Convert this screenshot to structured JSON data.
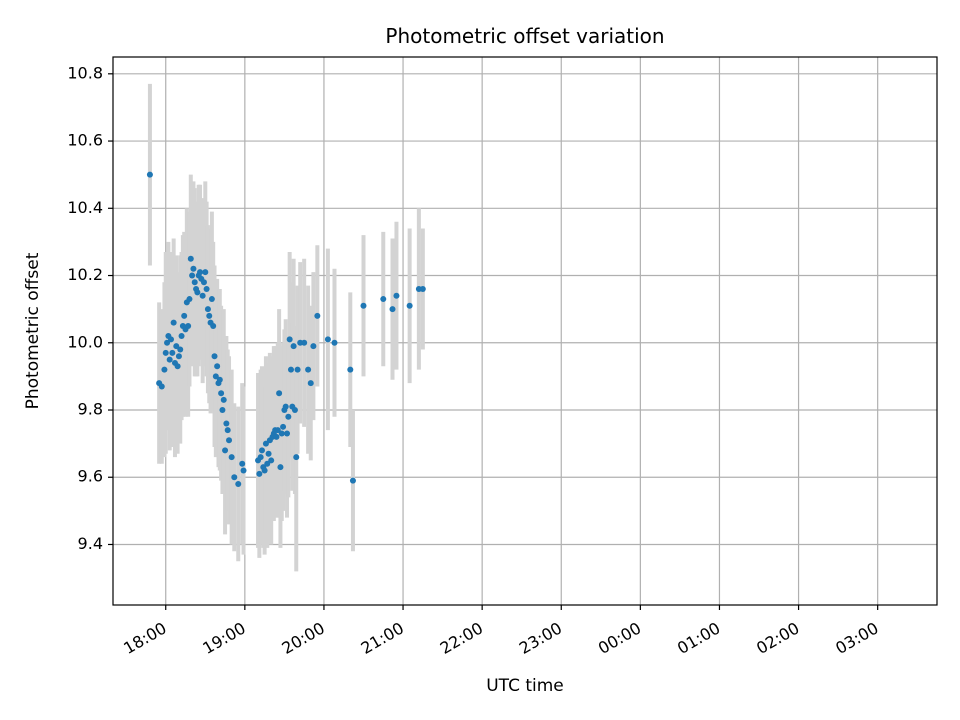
{
  "chart_data": {
    "type": "scatter",
    "title": "Photometric offset variation",
    "xlabel": "UTC time",
    "ylabel": "Photometric offset",
    "x_ticks": [
      "18:00",
      "19:00",
      "20:00",
      "21:00",
      "22:00",
      "23:00",
      "00:00",
      "01:00",
      "02:00",
      "03:00"
    ],
    "x_range": [
      "17:20",
      "03:45"
    ],
    "y_ticks": [
      "9.4",
      "9.6",
      "9.8",
      "10.0",
      "10.2",
      "10.4",
      "10.6",
      "10.8"
    ],
    "ylim": [
      9.22,
      10.85
    ],
    "grid": true,
    "colors": {
      "points": "#1f77b4",
      "error_bars": "#d3d3d3",
      "grid": "#b0b0b0"
    },
    "series": [
      {
        "x_time": [
          "17:48",
          "17:55",
          "17:57",
          "17:59",
          "18:00",
          "18:01",
          "18:02",
          "18:03",
          "18:04",
          "18:05",
          "18:06",
          "18:07",
          "18:08",
          "18:09",
          "18:10",
          "18:11",
          "18:12",
          "18:13",
          "18:14",
          "18:15",
          "18:16",
          "18:17",
          "18:18",
          "18:19",
          "18:20",
          "18:21",
          "18:22",
          "18:23",
          "18:24",
          "18:25",
          "18:26",
          "18:27",
          "18:28",
          "18:29",
          "18:30",
          "18:31",
          "18:32",
          "18:33",
          "18:34",
          "18:35",
          "18:36",
          "18:37",
          "18:38",
          "18:39",
          "18:40",
          "18:41",
          "18:42",
          "18:43",
          "18:44",
          "18:45",
          "18:46",
          "18:47",
          "18:48",
          "18:50",
          "18:52",
          "18:55",
          "18:58",
          "18:59",
          "19:10",
          "19:11",
          "19:12",
          "19:13",
          "19:14",
          "19:15",
          "19:16",
          "19:17",
          "19:18",
          "19:19",
          "19:20",
          "19:21",
          "19:22",
          "19:23",
          "19:24",
          "19:25",
          "19:26",
          "19:27",
          "19:28",
          "19:29",
          "19:30",
          "19:31",
          "19:32",
          "19:33",
          "19:34",
          "19:35",
          "19:36",
          "19:37",
          "19:38",
          "19:39",
          "19:40",
          "19:42",
          "19:45",
          "19:48",
          "19:50",
          "19:52",
          "19:55",
          "20:03",
          "20:08",
          "20:20",
          "20:22",
          "20:30",
          "20:45",
          "20:52",
          "20:55",
          "21:05",
          "21:12",
          "21:15"
        ],
        "y": [
          10.5,
          9.88,
          9.87,
          9.92,
          9.97,
          10.0,
          10.02,
          9.95,
          10.01,
          9.97,
          10.06,
          9.94,
          9.99,
          9.93,
          9.96,
          9.98,
          10.02,
          10.05,
          10.08,
          10.04,
          10.12,
          10.05,
          10.13,
          10.25,
          10.2,
          10.22,
          10.18,
          10.16,
          10.15,
          10.2,
          10.21,
          10.19,
          10.14,
          10.18,
          10.21,
          10.16,
          10.1,
          10.08,
          10.06,
          10.13,
          10.05,
          9.96,
          9.9,
          9.93,
          9.88,
          9.89,
          9.85,
          9.8,
          9.83,
          9.68,
          9.76,
          9.74,
          9.71,
          9.66,
          9.6,
          9.58,
          9.64,
          9.62,
          9.65,
          9.61,
          9.66,
          9.68,
          9.63,
          9.62,
          9.7,
          9.64,
          9.67,
          9.71,
          9.65,
          9.72,
          9.73,
          9.74,
          9.72,
          9.74,
          9.85,
          9.63,
          9.73,
          9.75,
          9.8,
          9.81,
          9.73,
          9.78,
          10.01,
          9.92,
          9.81,
          9.99,
          9.8,
          9.66,
          9.92,
          10.0,
          10.0,
          9.92,
          9.88,
          9.99,
          10.08,
          10.01,
          10.0,
          9.92,
          9.59,
          10.11,
          10.13,
          10.1,
          10.14,
          10.11,
          10.16,
          10.16
        ],
        "y_err": [
          0.27,
          0.24,
          0.23,
          0.26,
          0.3,
          0.25,
          0.28,
          0.27,
          0.26,
          0.28,
          0.25,
          0.28,
          0.27,
          0.26,
          0.25,
          0.28,
          0.25,
          0.27,
          0.25,
          0.26,
          0.28,
          0.27,
          0.26,
          0.25,
          0.27,
          0.26,
          0.28,
          0.26,
          0.25,
          0.27,
          0.26,
          0.24,
          0.26,
          0.25,
          0.27,
          0.26,
          0.25,
          0.26,
          0.27,
          0.26,
          0.25,
          0.27,
          0.24,
          0.26,
          0.25,
          0.27,
          0.26,
          0.25,
          0.27,
          0.25,
          0.26,
          0.24,
          0.25,
          0.26,
          0.22,
          0.23,
          0.24,
          0.25,
          0.26,
          0.25,
          0.26,
          0.25,
          0.24,
          0.25,
          0.26,
          0.25,
          0.27,
          0.26,
          0.25,
          0.24,
          0.26,
          0.25,
          0.24,
          0.26,
          0.25,
          0.24,
          0.26,
          0.25,
          0.24,
          0.26,
          0.25,
          0.24,
          0.26,
          0.26,
          0.25,
          0.26,
          0.25,
          0.34,
          0.25,
          0.24,
          0.25,
          0.25,
          0.23,
          0.22,
          0.21,
          0.27,
          0.22,
          0.23,
          0.21,
          0.21,
          0.2,
          0.21,
          0.22,
          0.23,
          0.24,
          0.18
        ]
      }
    ]
  }
}
